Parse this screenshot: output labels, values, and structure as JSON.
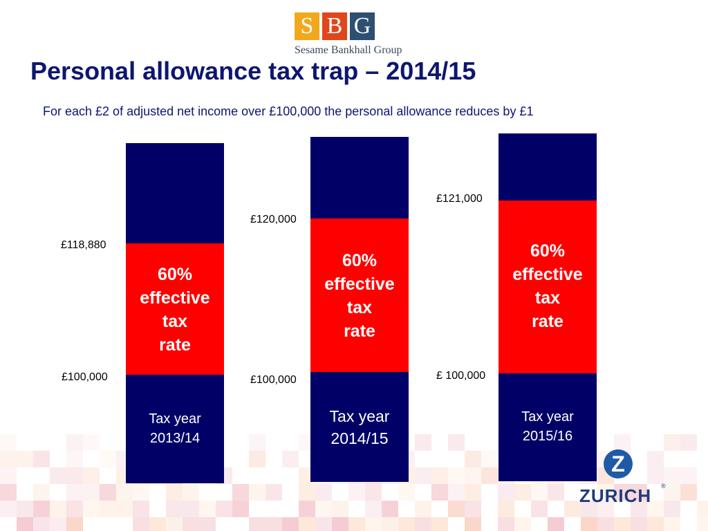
{
  "logo_sbg": {
    "letters": [
      "S",
      "B",
      "G"
    ],
    "name": "Sesame Bankhall Group"
  },
  "title": "Personal allowance tax trap – 2014/15",
  "subtitle": "For each £2 of adjusted net income over £100,000 the personal allowance reduces by £1",
  "bars": [
    {
      "band_lines": [
        "60%",
        "effective",
        "tax",
        "rate"
      ],
      "year_lines": [
        "Tax year",
        "2013/14"
      ],
      "upper_label": "£118,880",
      "lower_label": "£100,000"
    },
    {
      "band_lines": [
        "60%",
        "effective",
        "tax",
        "rate"
      ],
      "year_lines": [
        "Tax year",
        "2014/15"
      ],
      "upper_label": "£120,000",
      "lower_label": "£100,000"
    },
    {
      "band_lines": [
        "60%",
        "effective",
        "tax",
        "rate"
      ],
      "year_lines": [
        "Tax year",
        "2015/16"
      ],
      "upper_label": "£121,000",
      "lower_label": "£ 100,000"
    }
  ],
  "logo_zurich": {
    "mark": "Z",
    "word": "ZURICH",
    "reg": "®"
  },
  "colors": {
    "navy": "#000066",
    "red": "#ff0000",
    "title": "#0d1670"
  }
}
